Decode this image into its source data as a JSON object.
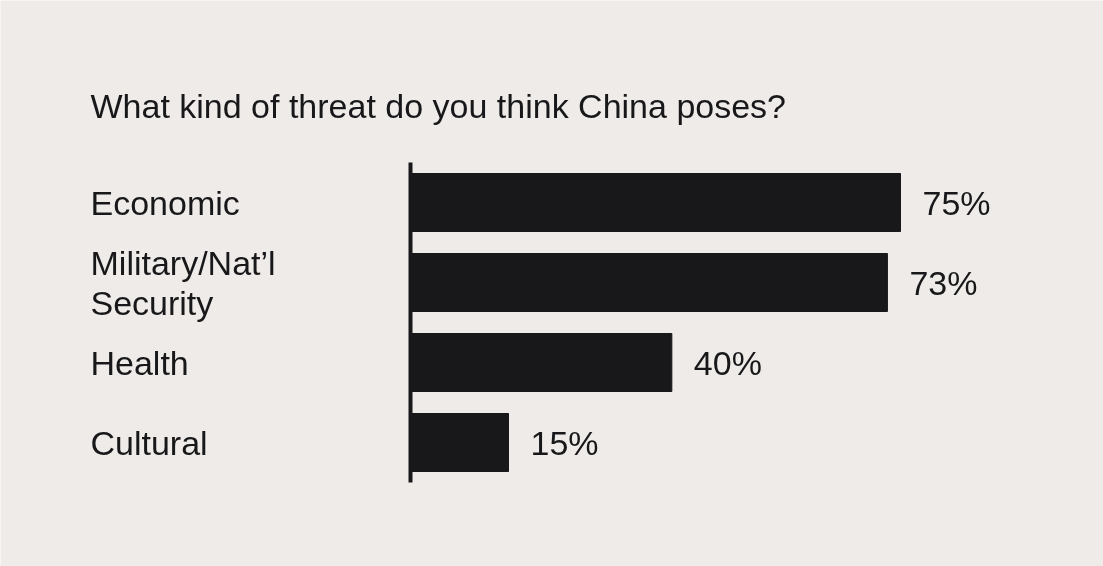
{
  "chart_data": {
    "type": "bar",
    "orientation": "horizontal",
    "title": "What kind of threat do you think China poses?",
    "categories": [
      "Economic",
      "Military/Nat’l Security",
      "Health",
      "Cultural"
    ],
    "values": [
      75,
      73,
      40,
      15
    ],
    "value_labels": [
      "75%",
      "73%",
      "40%",
      "15%"
    ],
    "color": "#18181a",
    "grid": false
  }
}
